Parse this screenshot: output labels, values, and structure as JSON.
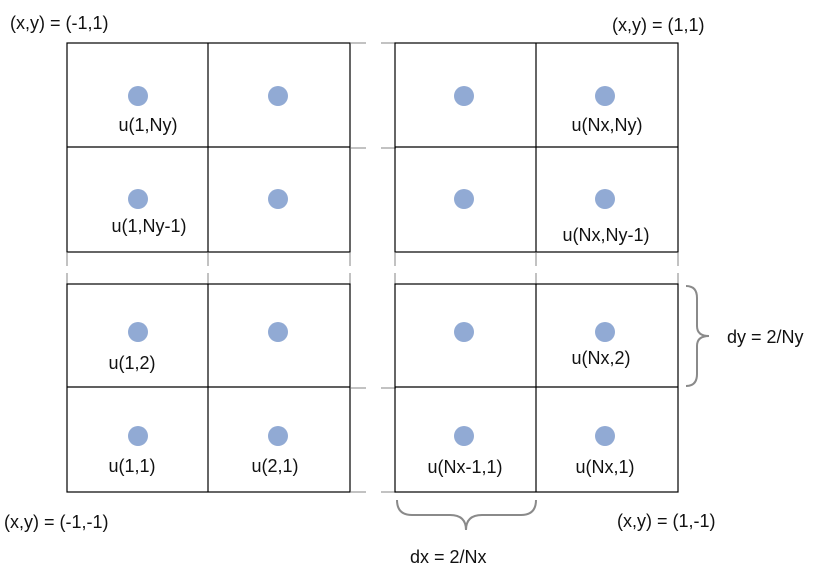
{
  "corners": {
    "top_left": "(x,y) = (-1,1)",
    "top_right": "(x,y) = (1,1)",
    "bottom_left": "(x,y) = (-1,-1)",
    "bottom_right": "(x,y) = (1,-1)"
  },
  "cells": {
    "q1_r1c1": "u(1,Ny)",
    "q1_r1c2": "",
    "q1_r2c1": "u(1,Ny-1)",
    "q1_r2c2": "",
    "q2_r1c1": "",
    "q2_r1c2": "u(Nx,Ny)",
    "q2_r2c1": "",
    "q2_r2c2": "u(Nx,Ny-1)",
    "q3_r1c1": "u(1,2)",
    "q3_r1c2": "",
    "q3_r2c1": "u(1,1)",
    "q3_r2c2": "u(2,1)",
    "q4_r1c1": "",
    "q4_r1c2": "u(Nx,2)",
    "q4_r2c1": "u(Nx-1,1)",
    "q4_r2c2": "u(Nx,1)"
  },
  "spacing": {
    "dy": "dy = 2/Ny",
    "dx": "dx = 2/Nx"
  },
  "colors": {
    "node_dot": "#91aad4",
    "grid_line": "#000000",
    "brace": "#8a8a8a"
  }
}
